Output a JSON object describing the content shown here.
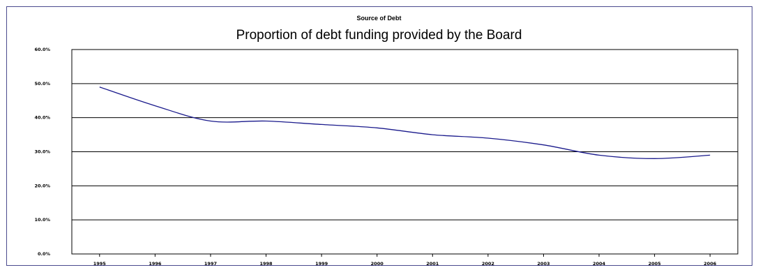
{
  "chart_data": {
    "type": "line",
    "supertitle": "Source of Debt",
    "title": "Proportion of debt funding provided by the Board",
    "xlabel": "",
    "ylabel": "",
    "categories": [
      "1995",
      "1996",
      "1997",
      "1998",
      "1999",
      "2000",
      "2001",
      "2002",
      "2003",
      "2004",
      "2005",
      "2006"
    ],
    "series": [
      {
        "values": [
          49.0,
          43.5,
          39.0,
          39.0,
          38.0,
          37.0,
          35.0,
          34.0,
          32.0,
          29.0,
          28.0,
          29.0
        ]
      }
    ],
    "ylim": [
      0,
      60
    ],
    "yticks": [
      "0.0%",
      "10.0%",
      "20.0%",
      "30.0%",
      "40.0%",
      "50.0%",
      "60.0%"
    ],
    "grid": true,
    "legend": "none",
    "colors": {
      "line": "#1a1a8c",
      "grid": "#000000",
      "frame": "#4a4a8e"
    }
  }
}
